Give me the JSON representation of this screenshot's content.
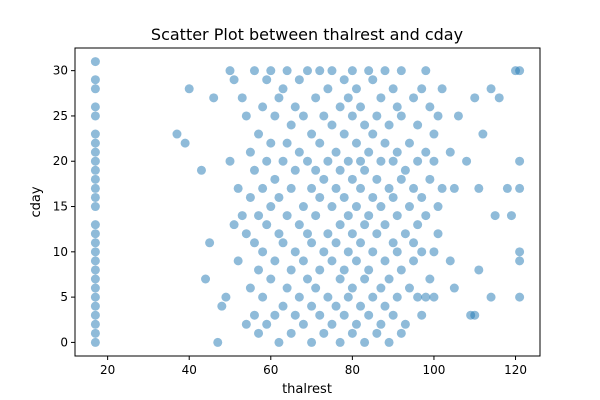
{
  "chart_data": {
    "type": "scatter",
    "title": "Scatter Plot between thalrest and cday",
    "xlabel": "thalrest",
    "ylabel": "cday",
    "xlim": [
      12,
      126
    ],
    "ylim": [
      -1.5,
      32.5
    ],
    "xticks": [
      20,
      40,
      60,
      80,
      100,
      120
    ],
    "yticks": [
      0,
      5,
      10,
      15,
      20,
      25,
      30
    ],
    "grid": false,
    "legend": "none",
    "point_color": "#1f77b4",
    "point_alpha": 0.5,
    "series": [
      {
        "points": [
          [
            17,
            0
          ],
          [
            17,
            1
          ],
          [
            17,
            2
          ],
          [
            17,
            3
          ],
          [
            17,
            4
          ],
          [
            17,
            5
          ],
          [
            17,
            6
          ],
          [
            17,
            7
          ],
          [
            17,
            8
          ],
          [
            17,
            9
          ],
          [
            17,
            10
          ],
          [
            17,
            11
          ],
          [
            17,
            12
          ],
          [
            17,
            13
          ],
          [
            17,
            15
          ],
          [
            17,
            16
          ],
          [
            17,
            17
          ],
          [
            17,
            18
          ],
          [
            17,
            19
          ],
          [
            17,
            20
          ],
          [
            17,
            21
          ],
          [
            17,
            22
          ],
          [
            17,
            23
          ],
          [
            17,
            25
          ],
          [
            17,
            26
          ],
          [
            17,
            28
          ],
          [
            17,
            29
          ],
          [
            17,
            31
          ],
          [
            37,
            23
          ],
          [
            39,
            22
          ],
          [
            40,
            28
          ],
          [
            43,
            19
          ],
          [
            44,
            7
          ],
          [
            45,
            11
          ],
          [
            46,
            27
          ],
          [
            47,
            0
          ],
          [
            48,
            4
          ],
          [
            49,
            5
          ],
          [
            50,
            30
          ],
          [
            50,
            20
          ],
          [
            51,
            13
          ],
          [
            51,
            29
          ],
          [
            52,
            17
          ],
          [
            52,
            9
          ],
          [
            53,
            14
          ],
          [
            53,
            27
          ],
          [
            54,
            2
          ],
          [
            54,
            12
          ],
          [
            54,
            25
          ],
          [
            55,
            6
          ],
          [
            55,
            16
          ],
          [
            55,
            21
          ],
          [
            56,
            3
          ],
          [
            56,
            11
          ],
          [
            56,
            19
          ],
          [
            56,
            30
          ],
          [
            57,
            1
          ],
          [
            57,
            8
          ],
          [
            57,
            14
          ],
          [
            57,
            23
          ],
          [
            58,
            5
          ],
          [
            58,
            10
          ],
          [
            58,
            17
          ],
          [
            58,
            26
          ],
          [
            59,
            2
          ],
          [
            59,
            13
          ],
          [
            59,
            20
          ],
          [
            59,
            29
          ],
          [
            60,
            7
          ],
          [
            60,
            15
          ],
          [
            60,
            22
          ],
          [
            60,
            30
          ],
          [
            61,
            3
          ],
          [
            61,
            9
          ],
          [
            61,
            18
          ],
          [
            61,
            25
          ],
          [
            62,
            0
          ],
          [
            62,
            12
          ],
          [
            62,
            16
          ],
          [
            62,
            27
          ],
          [
            63,
            4
          ],
          [
            63,
            11
          ],
          [
            63,
            20
          ],
          [
            63,
            28
          ],
          [
            64,
            6
          ],
          [
            64,
            14
          ],
          [
            64,
            22
          ],
          [
            64,
            30
          ],
          [
            65,
            1
          ],
          [
            65,
            8
          ],
          [
            65,
            17
          ],
          [
            65,
            24
          ],
          [
            66,
            3
          ],
          [
            66,
            10
          ],
          [
            66,
            19
          ],
          [
            66,
            26
          ],
          [
            67,
            5
          ],
          [
            67,
            13
          ],
          [
            67,
            21
          ],
          [
            67,
            29
          ],
          [
            68,
            2
          ],
          [
            68,
            9
          ],
          [
            68,
            15
          ],
          [
            68,
            25
          ],
          [
            69,
            7
          ],
          [
            69,
            12
          ],
          [
            69,
            20
          ],
          [
            69,
            30
          ],
          [
            70,
            0
          ],
          [
            70,
            4
          ],
          [
            70,
            11
          ],
          [
            70,
            17
          ],
          [
            70,
            23
          ],
          [
            71,
            6
          ],
          [
            71,
            14
          ],
          [
            71,
            19
          ],
          [
            71,
            27
          ],
          [
            72,
            3
          ],
          [
            72,
            8
          ],
          [
            72,
            16
          ],
          [
            72,
            22
          ],
          [
            72,
            30
          ],
          [
            73,
            1
          ],
          [
            73,
            10
          ],
          [
            73,
            18
          ],
          [
            73,
            25
          ],
          [
            74,
            5
          ],
          [
            74,
            12
          ],
          [
            74,
            20
          ],
          [
            74,
            28
          ],
          [
            75,
            2
          ],
          [
            75,
            9
          ],
          [
            75,
            15
          ],
          [
            75,
            24
          ],
          [
            75,
            30
          ],
          [
            76,
            4
          ],
          [
            76,
            11
          ],
          [
            76,
            17
          ],
          [
            76,
            21
          ],
          [
            77,
            0
          ],
          [
            77,
            7
          ],
          [
            77,
            13
          ],
          [
            77,
            19
          ],
          [
            77,
            26
          ],
          [
            78,
            3
          ],
          [
            78,
            8
          ],
          [
            78,
            16
          ],
          [
            78,
            23
          ],
          [
            78,
            29
          ],
          [
            79,
            5
          ],
          [
            79,
            10
          ],
          [
            79,
            14
          ],
          [
            79,
            20
          ],
          [
            79,
            27
          ],
          [
            80,
            1
          ],
          [
            80,
            6
          ],
          [
            80,
            12
          ],
          [
            80,
            18
          ],
          [
            80,
            25
          ],
          [
            80,
            30
          ],
          [
            81,
            2
          ],
          [
            81,
            9
          ],
          [
            81,
            15
          ],
          [
            81,
            22
          ],
          [
            81,
            28
          ],
          [
            82,
            4
          ],
          [
            82,
            11
          ],
          [
            82,
            17
          ],
          [
            82,
            20
          ],
          [
            82,
            26
          ],
          [
            83,
            0
          ],
          [
            83,
            7
          ],
          [
            83,
            13
          ],
          [
            83,
            19
          ],
          [
            83,
            24
          ],
          [
            84,
            3
          ],
          [
            84,
            8
          ],
          [
            84,
            14
          ],
          [
            84,
            21
          ],
          [
            84,
            30
          ],
          [
            85,
            5
          ],
          [
            85,
            10
          ],
          [
            85,
            16
          ],
          [
            85,
            23
          ],
          [
            85,
            29
          ],
          [
            86,
            1
          ],
          [
            86,
            12
          ],
          [
            86,
            18
          ],
          [
            86,
            25
          ],
          [
            87,
            2
          ],
          [
            87,
            6
          ],
          [
            87,
            15
          ],
          [
            87,
            20
          ],
          [
            87,
            27
          ],
          [
            88,
            4
          ],
          [
            88,
            9
          ],
          [
            88,
            13
          ],
          [
            88,
            22
          ],
          [
            88,
            30
          ],
          [
            89,
            0
          ],
          [
            89,
            7
          ],
          [
            89,
            17
          ],
          [
            89,
            24
          ],
          [
            90,
            3
          ],
          [
            90,
            11
          ],
          [
            90,
            16
          ],
          [
            90,
            20
          ],
          [
            90,
            28
          ],
          [
            91,
            5
          ],
          [
            91,
            10
          ],
          [
            91,
            14
          ],
          [
            91,
            21
          ],
          [
            91,
            26
          ],
          [
            92,
            1
          ],
          [
            92,
            8
          ],
          [
            92,
            18
          ],
          [
            92,
            25
          ],
          [
            92,
            30
          ],
          [
            93,
            2
          ],
          [
            93,
            12
          ],
          [
            93,
            19
          ],
          [
            94,
            6
          ],
          [
            94,
            15
          ],
          [
            94,
            22
          ],
          [
            95,
            9
          ],
          [
            95,
            11
          ],
          [
            95,
            17
          ],
          [
            95,
            27
          ],
          [
            96,
            5
          ],
          [
            96,
            13
          ],
          [
            96,
            20
          ],
          [
            96,
            24
          ],
          [
            97,
            3
          ],
          [
            97,
            10
          ],
          [
            97,
            16
          ],
          [
            97,
            28
          ],
          [
            98,
            5
          ],
          [
            98,
            14
          ],
          [
            98,
            21
          ],
          [
            98,
            30
          ],
          [
            99,
            7
          ],
          [
            99,
            18
          ],
          [
            99,
            26
          ],
          [
            100,
            5
          ],
          [
            100,
            10
          ],
          [
            100,
            20
          ],
          [
            100,
            23
          ],
          [
            101,
            12
          ],
          [
            101,
            15
          ],
          [
            101,
            25
          ],
          [
            102,
            17
          ],
          [
            102,
            28
          ],
          [
            104,
            9
          ],
          [
            104,
            21
          ],
          [
            105,
            6
          ],
          [
            105,
            17
          ],
          [
            106,
            25
          ],
          [
            108,
            20
          ],
          [
            109,
            3
          ],
          [
            110,
            3
          ],
          [
            110,
            27
          ],
          [
            111,
            8
          ],
          [
            111,
            17
          ],
          [
            112,
            23
          ],
          [
            114,
            5
          ],
          [
            114,
            28
          ],
          [
            115,
            14
          ],
          [
            116,
            27
          ],
          [
            118,
            17
          ],
          [
            119,
            14
          ],
          [
            120,
            30
          ],
          [
            121,
            5
          ],
          [
            121,
            9
          ],
          [
            121,
            10
          ],
          [
            121,
            17
          ],
          [
            121,
            20
          ],
          [
            121,
            30
          ]
        ]
      }
    ]
  }
}
